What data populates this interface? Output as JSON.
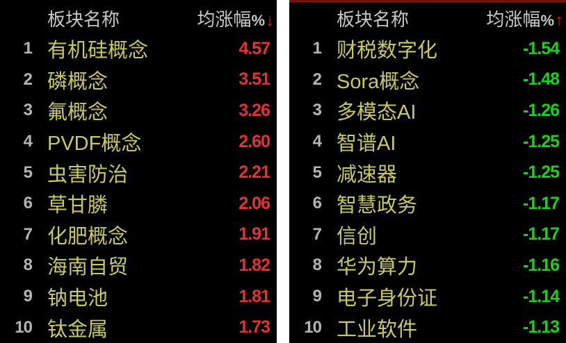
{
  "colors": {
    "background": "#000000",
    "gutter": "#ffffff",
    "sector_name": "#c9c964",
    "header_text": "#c8c8c8",
    "rank_text": "#b4b4b4",
    "gain_value": "#e93030",
    "loss_value": "#17d417",
    "sort_arrow": "#e01515",
    "right_panel_top_bar": "#8f1010"
  },
  "panels": [
    {
      "id": "top-gainers",
      "sort_direction": "desc",
      "header": {
        "name_col": "板块名称",
        "value_col": "均涨幅",
        "pct": "%",
        "sort_arrow": "↓"
      },
      "rows": [
        {
          "rank": "1",
          "name": "有机硅概念",
          "value": "4.57"
        },
        {
          "rank": "2",
          "name": "磷概念",
          "value": "3.51"
        },
        {
          "rank": "3",
          "name": "氟概念",
          "value": "3.26"
        },
        {
          "rank": "4",
          "name": "PVDF概念",
          "value": "2.60"
        },
        {
          "rank": "5",
          "name": "虫害防治",
          "value": "2.21"
        },
        {
          "rank": "6",
          "name": "草甘膦",
          "value": "2.06"
        },
        {
          "rank": "7",
          "name": "化肥概念",
          "value": "1.91"
        },
        {
          "rank": "8",
          "name": "海南自贸",
          "value": "1.82"
        },
        {
          "rank": "9",
          "name": "钠电池",
          "value": "1.81"
        },
        {
          "rank": "10",
          "name": "钛金属",
          "value": "1.73"
        }
      ]
    },
    {
      "id": "top-losers",
      "sort_direction": "asc",
      "header": {
        "name_col": "板块名称",
        "value_col": "均涨幅",
        "pct": "%",
        "sort_arrow": "↑"
      },
      "rows": [
        {
          "rank": "1",
          "name": "财税数字化",
          "value": "-1.54"
        },
        {
          "rank": "2",
          "name": "Sora概念",
          "value": "-1.48"
        },
        {
          "rank": "3",
          "name": "多模态AI",
          "value": "-1.26"
        },
        {
          "rank": "4",
          "name": "智谱AI",
          "value": "-1.25"
        },
        {
          "rank": "5",
          "name": "减速器",
          "value": "-1.25"
        },
        {
          "rank": "6",
          "name": "智慧政务",
          "value": "-1.17"
        },
        {
          "rank": "7",
          "name": "信创",
          "value": "-1.17"
        },
        {
          "rank": "8",
          "name": "华为算力",
          "value": "-1.16"
        },
        {
          "rank": "9",
          "name": "电子身份证",
          "value": "-1.14"
        },
        {
          "rank": "10",
          "name": "工业软件",
          "value": "-1.13"
        }
      ]
    }
  ]
}
